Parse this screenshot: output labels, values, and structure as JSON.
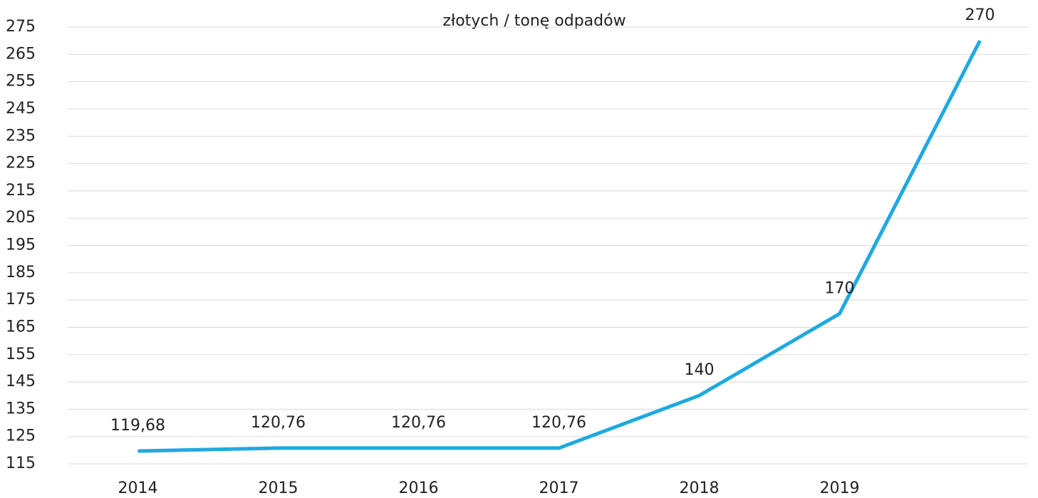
{
  "chart_data": {
    "type": "line",
    "title": "złotych / tonę odpadów",
    "categories": [
      "2014",
      "2015",
      "2016",
      "2017",
      "2018",
      "2019",
      null
    ],
    "series": [
      {
        "name": null,
        "color": "#1fa9e0",
        "values": [
          119.68,
          120.76,
          120.76,
          120.76,
          140,
          170,
          270
        ],
        "value_labels": [
          "119,68",
          "120,76",
          "120,76",
          "120,76",
          "140",
          "170",
          "270"
        ]
      }
    ],
    "ylim": [
      115,
      275
    ],
    "yticks": [
      115,
      125,
      135,
      145,
      155,
      165,
      175,
      185,
      195,
      205,
      215,
      225,
      235,
      245,
      255,
      265,
      275
    ],
    "grid": true
  }
}
